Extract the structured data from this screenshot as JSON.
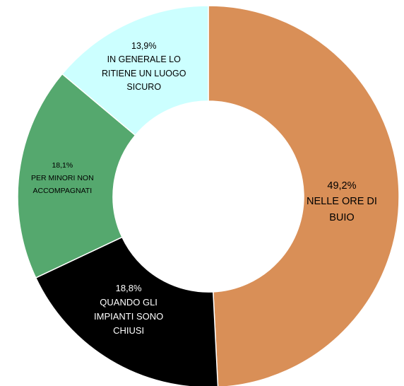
{
  "chart_data": {
    "type": "pie",
    "style": "donut",
    "slices": [
      {
        "pct_label": "49,2%",
        "label_lines": [
          "NELLE ORE DI",
          "BUIO"
        ],
        "value": 49.2,
        "color": "#d98f57",
        "text_color": "#000000"
      },
      {
        "pct_label": "18,8%",
        "label_lines": [
          "QUANDO GLI",
          "IMPIANTI SONO",
          "CHIUSI"
        ],
        "value": 18.8,
        "color": "#000000",
        "text_color": "#ffffff"
      },
      {
        "pct_label": "18,1%",
        "label_lines": [
          "PER MINORI NON",
          "ACCOMPAGNATI"
        ],
        "value": 18.1,
        "color": "#55a86e",
        "text_color": "#000000"
      },
      {
        "pct_label": "13,9%",
        "label_lines": [
          "IN GENERALE LO",
          "RITIENE UN LUOGO",
          "SICURO"
        ],
        "value": 13.9,
        "color": "#ccffff",
        "text_color": "#000000"
      }
    ]
  }
}
